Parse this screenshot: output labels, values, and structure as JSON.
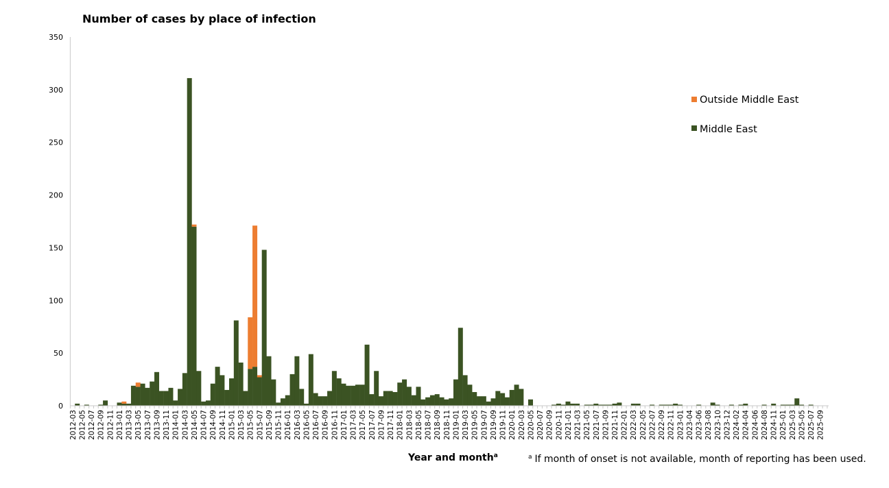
{
  "chart_data": {
    "type": "bar",
    "stacked": true,
    "title": "Number of cases by place of infection",
    "xlabel": "Year and month",
    "xlabel_superscript": "a",
    "ylabel": "",
    "ylim": [
      0,
      350
    ],
    "yticks": [
      0,
      50,
      100,
      150,
      200,
      250,
      300,
      350
    ],
    "grid": false,
    "legend_position": "right",
    "footnote_marker": "a",
    "footnote": "If month of onset is not available, month of reporting has been used.",
    "categories": [
      "2012-03",
      "2012-04",
      "2012-05",
      "2012-06",
      "2012-07",
      "2012-08",
      "2012-09",
      "2012-10",
      "2012-11",
      "2012-12",
      "2013-01",
      "2013-02",
      "2013-03",
      "2013-04",
      "2013-05",
      "2013-06",
      "2013-07",
      "2013-08",
      "2013-09",
      "2013-10",
      "2013-11",
      "2013-12",
      "2014-01",
      "2014-02",
      "2014-03",
      "2014-04",
      "2014-05",
      "2014-06",
      "2014-07",
      "2014-08",
      "2014-09",
      "2014-10",
      "2014-11",
      "2014-12",
      "2015-01",
      "2015-02",
      "2015-03",
      "2015-04",
      "2015-05",
      "2015-06",
      "2015-07",
      "2015-08",
      "2015-09",
      "2015-10",
      "2015-11",
      "2015-12",
      "2016-01",
      "2016-02",
      "2016-03",
      "2016-04",
      "2016-05",
      "2016-06",
      "2016-07",
      "2016-08",
      "2016-09",
      "2016-10",
      "2016-11",
      "2016-12",
      "2017-01",
      "2017-02",
      "2017-03",
      "2017-04",
      "2017-05",
      "2017-06",
      "2017-07",
      "2017-08",
      "2017-09",
      "2017-10",
      "2017-11",
      "2017-12",
      "2018-01",
      "2018-02",
      "2018-03",
      "2018-04",
      "2018-05",
      "2018-06",
      "2018-07",
      "2018-08",
      "2018-09",
      "2018-10",
      "2018-11",
      "2018-12",
      "2019-01",
      "2019-02",
      "2019-03",
      "2019-04",
      "2019-05",
      "2019-06",
      "2019-07",
      "2019-08",
      "2019-09",
      "2019-10",
      "2019-11",
      "2019-12",
      "2020-01",
      "2020-02",
      "2020-03",
      "2020-04",
      "2020-05",
      "2020-06",
      "2020-07",
      "2020-08",
      "2020-09",
      "2020-10",
      "2020-11",
      "2020-12",
      "2021-01",
      "2021-02",
      "2021-03",
      "2021-04",
      "2021-05",
      "2021-06",
      "2021-07",
      "2021-08",
      "2021-09",
      "2021-10",
      "2021-11",
      "2021-12",
      "2022-01",
      "2022-02",
      "2022-03",
      "2022-04",
      "2022-05",
      "2022-06",
      "2022-07",
      "2022-08",
      "2022-09",
      "2022-10",
      "2022-11",
      "2022-12",
      "2023-01",
      "2023-03",
      "2023-04",
      "2023-05",
      "2023-06",
      "2023-07",
      "2023-08",
      "2023-09",
      "2023-10",
      "2023-11",
      "2023-12",
      "2024-01",
      "2024-02",
      "2024-03",
      "2024-04",
      "2024-05",
      "2024-06",
      "2024-07",
      "2024-08",
      "2024-10",
      "2024-11",
      "2024-12",
      "2025-01",
      "2025-02",
      "2025-03",
      "2025-04",
      "2025-05",
      "2025-06",
      "2025-07",
      "2025-08",
      "2025-09",
      "2025-10"
    ],
    "series": [
      {
        "name": "Middle East",
        "color": "#3B5323",
        "values": [
          0,
          2,
          0,
          1,
          0,
          0,
          1,
          5,
          0,
          0,
          3,
          2,
          2,
          19,
          18,
          21,
          17,
          23,
          32,
          14,
          14,
          17,
          5,
          16,
          31,
          311,
          170,
          33,
          4,
          5,
          21,
          37,
          29,
          15,
          26,
          81,
          41,
          14,
          35,
          37,
          27,
          148,
          47,
          25,
          3,
          7,
          10,
          30,
          47,
          16,
          2,
          49,
          12,
          9,
          9,
          14,
          33,
          26,
          21,
          19,
          19,
          20,
          20,
          58,
          11,
          33,
          9,
          14,
          14,
          13,
          22,
          25,
          18,
          10,
          18,
          6,
          8,
          10,
          11,
          8,
          6,
          7,
          25,
          74,
          29,
          20,
          13,
          9,
          9,
          4,
          7,
          14,
          12,
          8,
          15,
          20,
          16,
          0,
          6,
          0,
          0,
          0,
          0,
          1,
          2,
          1,
          4,
          2,
          2,
          0,
          1,
          1,
          2,
          1,
          1,
          1,
          2,
          3,
          0,
          0,
          2,
          2,
          0,
          0,
          1,
          0,
          1,
          1,
          1,
          2,
          1,
          0,
          0,
          0,
          1,
          0,
          0,
          3,
          1,
          0,
          0,
          1,
          0,
          1,
          2,
          0,
          0,
          0,
          1,
          0,
          2,
          0,
          1,
          1,
          1,
          7,
          1,
          0,
          1,
          0,
          0,
          0
        ]
      },
      {
        "name": "Outside Middle East",
        "color": "#ED7D31",
        "values": [
          0,
          0,
          0,
          0,
          0,
          0,
          0,
          0,
          0,
          0,
          0,
          2,
          0,
          0,
          4,
          0,
          0,
          0,
          0,
          0,
          0,
          0,
          0,
          0,
          0,
          0,
          2,
          0,
          0,
          0,
          0,
          0,
          0,
          0,
          0,
          0,
          0,
          0,
          49,
          134,
          2,
          0,
          0,
          0,
          0,
          0,
          0,
          0,
          0,
          0,
          0,
          0,
          0,
          0,
          0,
          0,
          0,
          0,
          0,
          0,
          0,
          0,
          0,
          0,
          0,
          0,
          0,
          0,
          0,
          0,
          0,
          0,
          0,
          0,
          0,
          0,
          0,
          0,
          0,
          0,
          0,
          0,
          0,
          0,
          0,
          0,
          0,
          0,
          0,
          0,
          0,
          0,
          0,
          0,
          0,
          0,
          0,
          0,
          0,
          0,
          0,
          0,
          0,
          0,
          0,
          0,
          0,
          0,
          0,
          0,
          0,
          0,
          0,
          0,
          0,
          0,
          0,
          0,
          0,
          0,
          0,
          0,
          0,
          0,
          0,
          0,
          0,
          0,
          0,
          0,
          0,
          0,
          0,
          0,
          0,
          0,
          0,
          0,
          0,
          0,
          0,
          0,
          0,
          0,
          0,
          0,
          0,
          0,
          0,
          0,
          0,
          0,
          0,
          0,
          0,
          0,
          0,
          0,
          0,
          0,
          0,
          0
        ]
      }
    ],
    "legend": [
      "Outside Middle East",
      "Middle East"
    ]
  }
}
